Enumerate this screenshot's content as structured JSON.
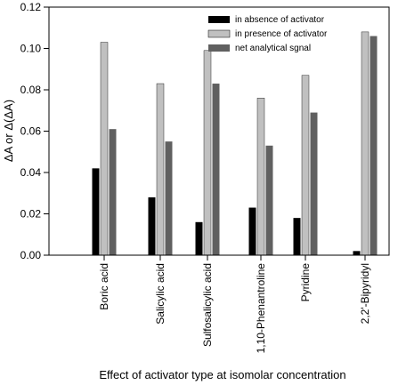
{
  "chart_data": {
    "type": "bar",
    "xlabel": "Effect of activator type at isomolar concentration",
    "ylabel": "ΔA or Δ(ΔA)",
    "ylim": [
      0,
      0.12
    ],
    "yticks": [
      "0.00",
      "0.02",
      "0.04",
      "0.06",
      "0.08",
      "0.10",
      "0.12"
    ],
    "categories": [
      "Boric acid",
      "Salicylic acid",
      "Sulfosalicylic acid",
      "1,10-Phenantroline",
      "Pyridine",
      "2,2'-Bipyridyl"
    ],
    "series": [
      {
        "name": "in absence of activator",
        "color": "#000000",
        "values": [
          0.042,
          0.028,
          0.016,
          0.023,
          0.018,
          0.002
        ]
      },
      {
        "name": "in presence of activator",
        "color": "#c0c0c0",
        "values": [
          0.103,
          0.083,
          0.099,
          0.076,
          0.087,
          0.108
        ]
      },
      {
        "name": "net analytical sgnal",
        "color": "#606060",
        "values": [
          0.061,
          0.055,
          0.083,
          0.053,
          0.069,
          0.106
        ]
      }
    ],
    "legend": "top-right",
    "grid": false
  }
}
